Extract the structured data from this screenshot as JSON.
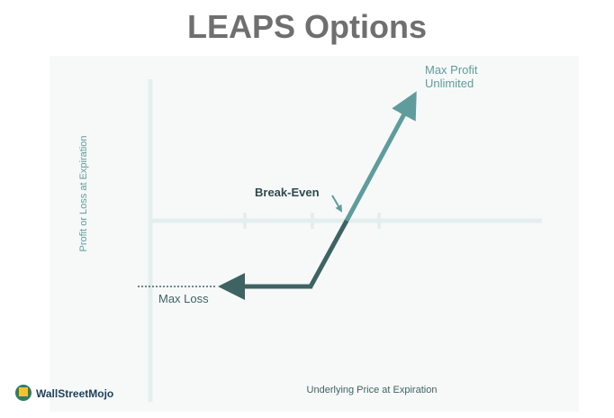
{
  "header": {
    "title": "LEAPS Options"
  },
  "diagram": {
    "y_axis_label": "Profit or Loss at Expiration",
    "x_axis_label": "Underlying Price at Expiration",
    "annotations": {
      "max_profit": [
        "Max Profit",
        "Unlimited"
      ],
      "break_even": "Break-Even",
      "max_loss": "Max Loss"
    }
  },
  "footer": {
    "logo": "WallStreetMojo"
  }
}
